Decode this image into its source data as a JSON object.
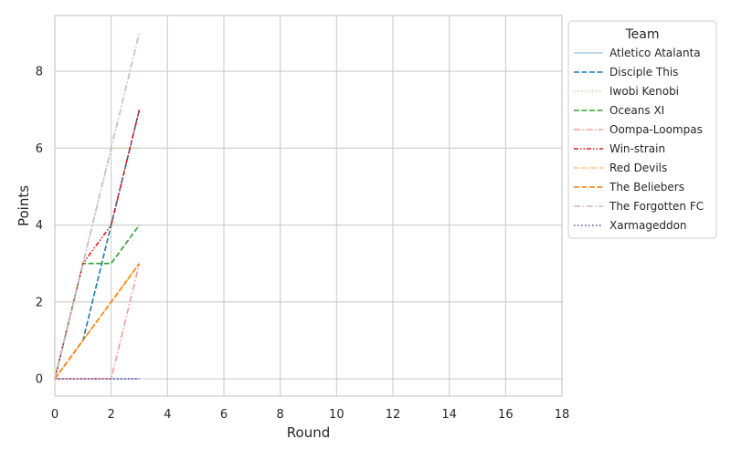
{
  "chart_data": {
    "type": "line",
    "title": "",
    "xlabel": "Round",
    "ylabel": "Points",
    "xlim": [
      0,
      18
    ],
    "ylim": [
      -0.45,
      9.45
    ],
    "xticks": [
      0,
      2,
      4,
      6,
      8,
      10,
      12,
      14,
      16,
      18
    ],
    "yticks": [
      0,
      2,
      4,
      6,
      8
    ],
    "grid": true,
    "legend": {
      "title": "Team",
      "placement": "outside-right-top"
    },
    "series": [
      {
        "name": "Atletico Atalanta",
        "color": "#a6cee3",
        "dash": "solid",
        "x": [
          0,
          1,
          2,
          3
        ],
        "y": [
          0,
          0,
          0,
          0
        ]
      },
      {
        "name": "Disciple This",
        "color": "#1f78b4",
        "dash": "dashed",
        "x": [
          0,
          1,
          2,
          3
        ],
        "y": [
          0,
          1,
          4,
          7
        ]
      },
      {
        "name": "Iwobi Kenobi",
        "color": "#b2df8a",
        "dash": "dotted",
        "x": [
          0,
          1,
          2,
          3
        ],
        "y": [
          0,
          3,
          6,
          6
        ]
      },
      {
        "name": "Oceans XI",
        "color": "#33a02c",
        "dash": "dashed",
        "x": [
          0,
          1,
          2,
          3
        ],
        "y": [
          0,
          3,
          3,
          4
        ]
      },
      {
        "name": "Oompa-Loompas",
        "color": "#fb9a99",
        "dash": "dashdot",
        "x": [
          0,
          1,
          2,
          3
        ],
        "y": [
          0,
          0,
          0,
          3
        ]
      },
      {
        "name": "Win-strain",
        "color": "#e31a1c",
        "dash": "dashdotdot",
        "x": [
          0,
          1,
          2,
          3
        ],
        "y": [
          0,
          3,
          4,
          7
        ]
      },
      {
        "name": "Red Devils",
        "color": "#fdbf6f",
        "dash": "dashdot2",
        "x": [
          0,
          1,
          2,
          3
        ],
        "y": [
          0,
          1,
          2,
          3
        ]
      },
      {
        "name": "The Beliebers",
        "color": "#ff7f00",
        "dash": "dashed",
        "x": [
          0,
          1,
          2,
          3
        ],
        "y": [
          0,
          1,
          2,
          3
        ]
      },
      {
        "name": "The Forgotten FC",
        "color": "#cab2d6",
        "dash": "dashdot",
        "x": [
          0,
          1,
          2,
          3
        ],
        "y": [
          0,
          3,
          6,
          9
        ]
      },
      {
        "name": "Xarmageddon",
        "color": "#6a3d9a",
        "dash": "dotted",
        "x": [
          0,
          1,
          2,
          3
        ],
        "y": [
          0,
          0,
          0,
          0
        ]
      }
    ]
  }
}
